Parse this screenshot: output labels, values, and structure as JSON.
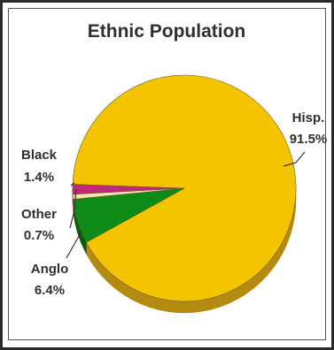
{
  "chart_data": {
    "type": "pie",
    "title": "Ethnic Population",
    "slices": [
      {
        "label": "Hisp.",
        "value": 91.5,
        "value_label": "91.5%",
        "color": "#F5C400",
        "side_color": "#B58A10"
      },
      {
        "label": "Anglo",
        "value": 6.4,
        "value_label": "6.4%",
        "color": "#0E8A17",
        "side_color": "#0A5A10"
      },
      {
        "label": "Other",
        "value": 0.7,
        "value_label": "0.7%",
        "color": "#F2E6B0",
        "side_color": "#9E9270"
      },
      {
        "label": "Black",
        "value": 1.4,
        "value_label": "1.4%",
        "color": "#C0287A",
        "side_color": "#7A1850"
      }
    ],
    "legend": "none",
    "style": "3d"
  }
}
